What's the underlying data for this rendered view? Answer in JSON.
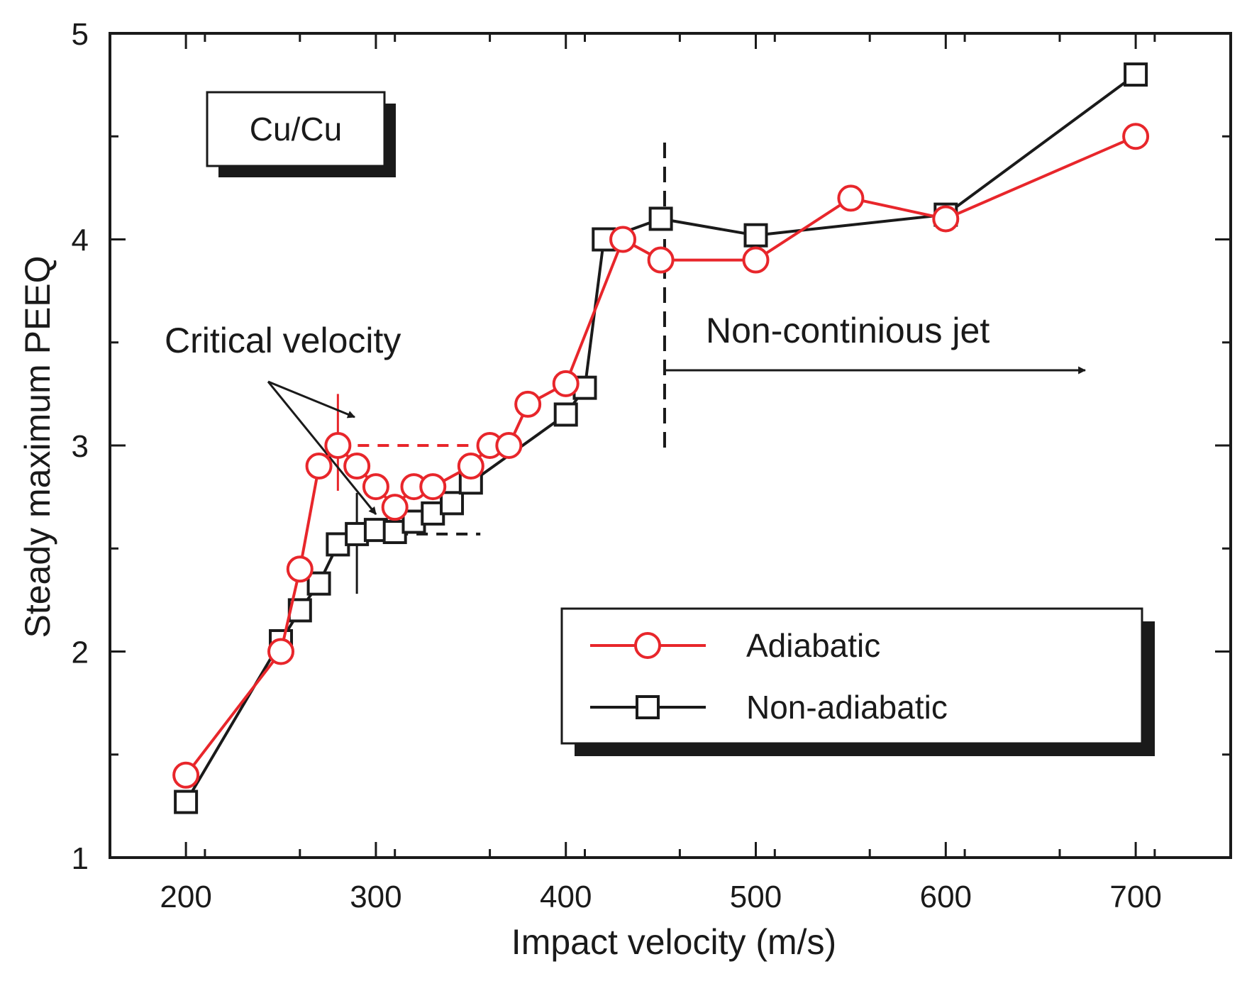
{
  "chart_data": {
    "type": "line",
    "title": "",
    "xlabel": "Impact velocity (m/s)",
    "ylabel": "Steady maximum PEEQ",
    "xlim": [
      160,
      750
    ],
    "ylim": [
      1,
      5
    ],
    "x_ticks": [
      200,
      300,
      400,
      500,
      600,
      700
    ],
    "x_tick_labels": [
      "200",
      "300",
      "400",
      "500",
      "600",
      "700"
    ],
    "y_ticks": [
      1,
      2,
      3,
      4,
      5
    ],
    "y_tick_labels": [
      "1",
      "2",
      "3",
      "4",
      "5"
    ],
    "grid": false,
    "legend_position": "lower-right",
    "series": [
      {
        "name": "Adiabatic",
        "color": "#e8262b",
        "marker": "circle",
        "x": [
          200,
          250,
          260,
          270,
          280,
          290,
          300,
          310,
          320,
          330,
          350,
          360,
          370,
          380,
          400,
          430,
          450,
          500,
          550,
          600,
          700
        ],
        "y": [
          1.4,
          2.0,
          2.4,
          2.9,
          3.0,
          2.9,
          2.8,
          2.7,
          2.8,
          2.8,
          2.9,
          3.0,
          3.0,
          3.2,
          3.3,
          4.0,
          3.9,
          3.9,
          4.2,
          4.1,
          4.5
        ]
      },
      {
        "name": "Non-adiabatic",
        "color": "#1a1a1a",
        "marker": "square",
        "x": [
          200,
          250,
          260,
          270,
          280,
          290,
          300,
          310,
          320,
          330,
          340,
          350,
          400,
          410,
          420,
          450,
          500,
          600,
          700
        ],
        "y": [
          1.27,
          2.05,
          2.2,
          2.33,
          2.52,
          2.57,
          2.59,
          2.58,
          2.63,
          2.67,
          2.72,
          2.82,
          3.15,
          3.28,
          4.0,
          4.1,
          4.02,
          4.12,
          4.8
        ]
      }
    ],
    "annotations": {
      "material_label": "Cu/Cu",
      "critical_velocity": "Critical velocity",
      "non_continuous_jet": "Non-continious jet"
    },
    "reference_lines": {
      "adiabatic_critical_velocity": 280,
      "adiabatic_plateau_level": 3.0,
      "non_adiabatic_critical_velocity": 290,
      "non_adiabatic_plateau_level": 2.57,
      "jet_threshold_velocity": 452
    }
  }
}
